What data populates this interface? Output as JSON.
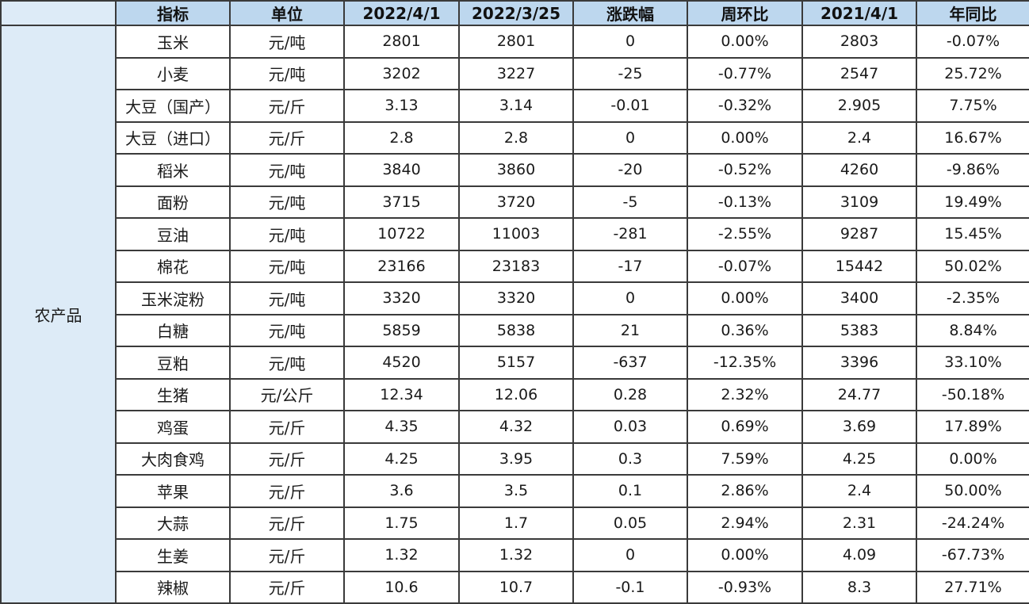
{
  "header": {
    "corner": "",
    "name": "指标",
    "unit": "单位",
    "d1": "2022/4/1",
    "d2": "2022/3/25",
    "chg": "涨跌幅",
    "wow": "周环比",
    "d3": "2021/4/1",
    "yoy": "年同比"
  },
  "category": "农产品",
  "colors": {
    "header_bg": "#bdd7ee",
    "category_bg": "#ddebf7",
    "up": "#d63a3a",
    "down": "#1f9a4a"
  },
  "rows": [
    {
      "name": "玉米",
      "unit": "元/吨",
      "d1": "2801",
      "d2": "2801",
      "chg": "0",
      "wow": "0.00%",
      "d3": "2803",
      "yoy": "-0.07%"
    },
    {
      "name": "小麦",
      "unit": "元/吨",
      "d1": "3202",
      "d2": "3227",
      "chg": "-25",
      "wow": "-0.77%",
      "d3": "2547",
      "yoy": "25.72%"
    },
    {
      "name": "大豆（国产）",
      "unit": "元/斤",
      "d1": "3.13",
      "d2": "3.14",
      "chg": "-0.01",
      "wow": "-0.32%",
      "d3": "2.905",
      "yoy": "7.75%"
    },
    {
      "name": "大豆（进口）",
      "unit": "元/斤",
      "d1": "2.8",
      "d2": "2.8",
      "chg": "0",
      "wow": "0.00%",
      "d3": "2.4",
      "yoy": "16.67%"
    },
    {
      "name": "稻米",
      "unit": "元/吨",
      "d1": "3840",
      "d2": "3860",
      "chg": "-20",
      "wow": "-0.52%",
      "d3": "4260",
      "yoy": "-9.86%"
    },
    {
      "name": "面粉",
      "unit": "元/吨",
      "d1": "3715",
      "d2": "3720",
      "chg": "-5",
      "wow": "-0.13%",
      "d3": "3109",
      "yoy": "19.49%"
    },
    {
      "name": "豆油",
      "unit": "元/吨",
      "d1": "10722",
      "d2": "11003",
      "chg": "-281",
      "wow": "-2.55%",
      "d3": "9287",
      "yoy": "15.45%"
    },
    {
      "name": "棉花",
      "unit": "元/吨",
      "d1": "23166",
      "d2": "23183",
      "chg": "-17",
      "wow": "-0.07%",
      "d3": "15442",
      "yoy": "50.02%"
    },
    {
      "name": "玉米淀粉",
      "unit": "元/吨",
      "d1": "3320",
      "d2": "3320",
      "chg": "0",
      "wow": "0.00%",
      "d3": "3400",
      "yoy": "-2.35%"
    },
    {
      "name": "白糖",
      "unit": "元/吨",
      "d1": "5859",
      "d2": "5838",
      "chg": "21",
      "wow": "0.36%",
      "d3": "5383",
      "yoy": "8.84%"
    },
    {
      "name": "豆粕",
      "unit": "元/吨",
      "d1": "4520",
      "d2": "5157",
      "chg": "-637",
      "wow": "-12.35%",
      "d3": "3396",
      "yoy": "33.10%"
    },
    {
      "name": "生猪",
      "unit": "元/公斤",
      "d1": "12.34",
      "d2": "12.06",
      "chg": "0.28",
      "wow": "2.32%",
      "d3": "24.77",
      "yoy": "-50.18%"
    },
    {
      "name": "鸡蛋",
      "unit": "元/斤",
      "d1": "4.35",
      "d2": "4.32",
      "chg": "0.03",
      "wow": "0.69%",
      "d3": "3.69",
      "yoy": "17.89%"
    },
    {
      "name": "大肉食鸡",
      "unit": "元/斤",
      "d1": "4.25",
      "d2": "3.95",
      "chg": "0.3",
      "wow": "7.59%",
      "d3": "4.25",
      "yoy": "0.00%"
    },
    {
      "name": "苹果",
      "unit": "元/斤",
      "d1": "3.6",
      "d2": "3.5",
      "chg": "0.1",
      "wow": "2.86%",
      "d3": "2.4",
      "yoy": "50.00%"
    },
    {
      "name": "大蒜",
      "unit": "元/斤",
      "d1": "1.75",
      "d2": "1.7",
      "chg": "0.05",
      "wow": "2.94%",
      "d3": "2.31",
      "yoy": "-24.24%"
    },
    {
      "name": "生姜",
      "unit": "元/斤",
      "d1": "1.32",
      "d2": "1.32",
      "chg": "0",
      "wow": "0.00%",
      "d3": "4.09",
      "yoy": "-67.73%"
    },
    {
      "name": "辣椒",
      "unit": "元/斤",
      "d1": "10.6",
      "d2": "10.7",
      "chg": "-0.1",
      "wow": "-0.93%",
      "d3": "8.3",
      "yoy": "27.71%"
    }
  ]
}
